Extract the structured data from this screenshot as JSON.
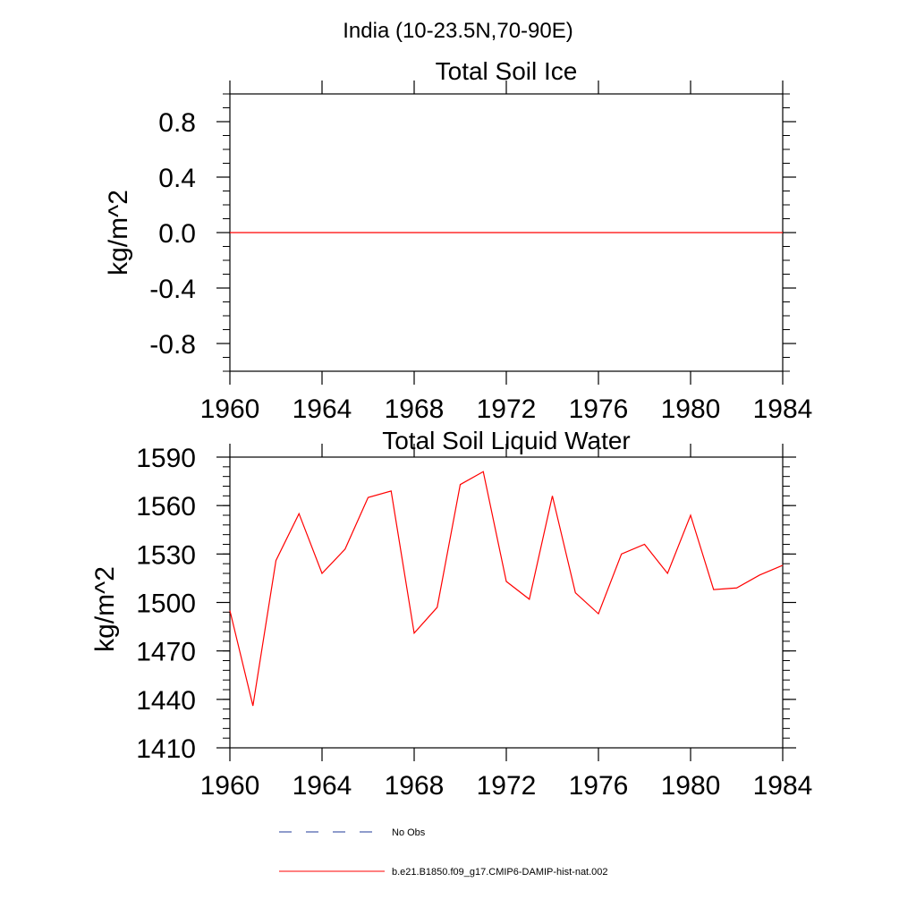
{
  "figure_title": "India (10-23.5N,70-90E)",
  "chart_data": [
    {
      "type": "line",
      "title": "Total Soil Ice",
      "xlabel": "",
      "ylabel": "kg/m^2",
      "xlim": [
        1960,
        1984
      ],
      "ylim": [
        -1.0,
        1.0
      ],
      "x_ticks": [
        1960,
        1964,
        1968,
        1972,
        1976,
        1980,
        1984
      ],
      "x_tick_labels": [
        "1960",
        "1964",
        "1968",
        "1972",
        "1976",
        "1980",
        "1984"
      ],
      "y_ticks": [
        -0.8,
        -0.4,
        0.0,
        0.4,
        0.8
      ],
      "y_tick_labels": [
        "-0.8",
        "-0.4",
        "0.0",
        "0.4",
        "0.8"
      ],
      "grid": false,
      "series": [
        {
          "name": "b.e21.B1850.f09_g17.CMIP6-DAMIP-hist-nat.002",
          "color": "#ff0000",
          "x": [
            1960,
            1961,
            1962,
            1963,
            1964,
            1965,
            1966,
            1967,
            1968,
            1969,
            1970,
            1971,
            1972,
            1973,
            1974,
            1975,
            1976,
            1977,
            1978,
            1979,
            1980,
            1981,
            1982,
            1983,
            1984
          ],
          "values": [
            0,
            0,
            0,
            0,
            0,
            0,
            0,
            0,
            0,
            0,
            0,
            0,
            0,
            0,
            0,
            0,
            0,
            0,
            0,
            0,
            0,
            0,
            0,
            0,
            0
          ]
        }
      ]
    },
    {
      "type": "line",
      "title": "Total Soil Liquid Water",
      "xlabel": "",
      "ylabel": "kg/m^2",
      "xlim": [
        1960,
        1984
      ],
      "ylim": [
        1410,
        1590
      ],
      "x_ticks": [
        1960,
        1964,
        1968,
        1972,
        1976,
        1980,
        1984
      ],
      "x_tick_labels": [
        "1960",
        "1964",
        "1968",
        "1972",
        "1976",
        "1980",
        "1984"
      ],
      "y_ticks": [
        1410,
        1440,
        1470,
        1500,
        1530,
        1560,
        1590
      ],
      "y_tick_labels": [
        "1410",
        "1440",
        "1470",
        "1500",
        "1530",
        "1560",
        "1590"
      ],
      "grid": false,
      "series": [
        {
          "name": "b.e21.B1850.f09_g17.CMIP6-DAMIP-hist-nat.002",
          "color": "#ff0000",
          "x": [
            1960,
            1961,
            1962,
            1963,
            1964,
            1965,
            1966,
            1967,
            1968,
            1969,
            1970,
            1971,
            1972,
            1973,
            1974,
            1975,
            1976,
            1977,
            1978,
            1979,
            1980,
            1981,
            1982,
            1983,
            1984
          ],
          "values": [
            1495,
            1436,
            1526,
            1555,
            1518,
            1533,
            1565,
            1569,
            1481,
            1497,
            1573,
            1581,
            1513,
            1502,
            1566,
            1506,
            1493,
            1530,
            1536,
            1518,
            1554,
            1508,
            1509,
            1517,
            1523
          ]
        }
      ]
    }
  ],
  "legend": {
    "placement": "bottom",
    "items": [
      {
        "label": "No Obs",
        "color": "#1f3a9a",
        "style": "dashed"
      },
      {
        "label": "b.e21.B1850.f09_g17.CMIP6-DAMIP-hist-nat.002",
        "color": "#ff0000",
        "style": "solid"
      }
    ]
  }
}
